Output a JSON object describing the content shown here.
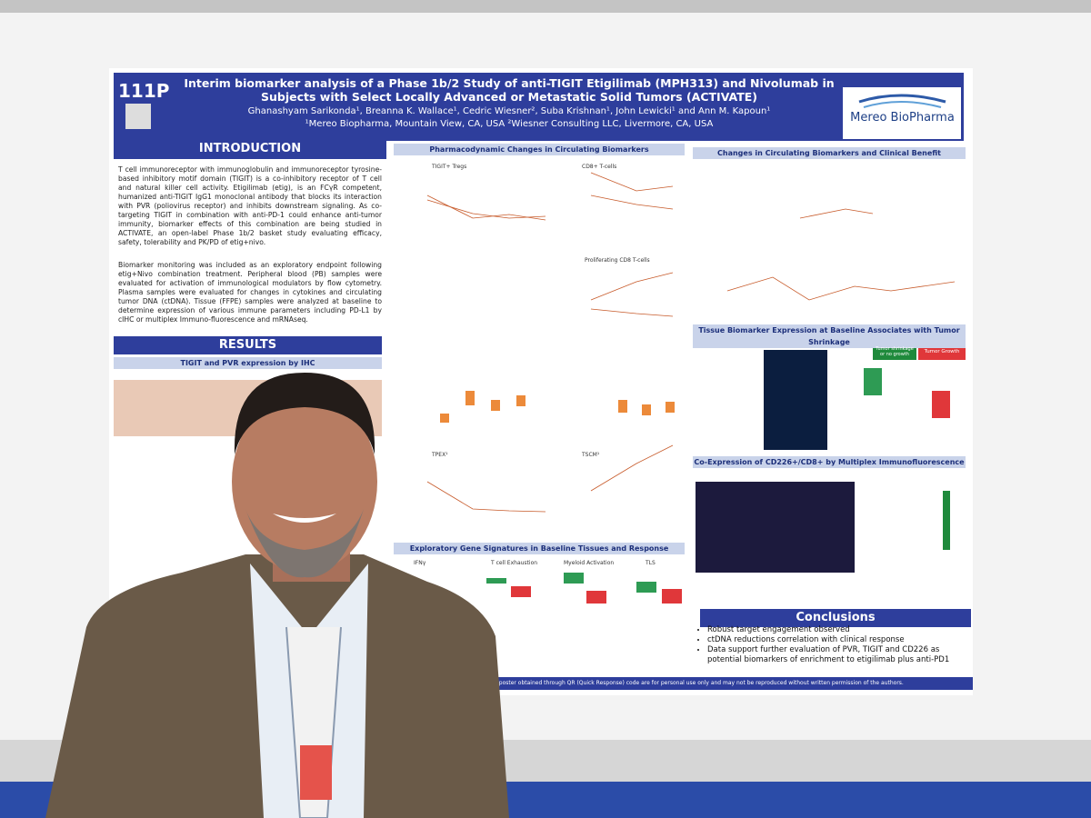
{
  "header": {
    "badge": "111P",
    "title": "Interim biomarker analysis of a Phase 1b/2 Study of anti-TIGIT Etigilimab (MPH313) and Nivolumab in Subjects with Select Locally Advanced or Metastatic Solid Tumors (ACTIVATE)",
    "authors": "Ghanashyam Sarikonda¹, Breanna K. Wallace¹, Cedric Wiesner², Suba Krishnan¹, John Lewicki¹ and Ann M. Kapoun¹",
    "affiliations": "¹Mereo Biopharma, Mountain View, CA, USA ²Wiesner Consulting LLC, Livermore, CA, USA",
    "logo": "Mereo BioPharma"
  },
  "introduction": {
    "heading": "INTRODUCTION",
    "paragraphs": [
      "T cell immunoreceptor with immunoglobulin and immunoreceptor tyrosine-based inhibitory motif domain (TIGIT) is a co-inhibitory receptor of T cell and natural killer cell activity. Etigilimab (etig), is an FCγR competent, humanized anti-TIGIT IgG1 monoclonal antibody that blocks its interaction with PVR (poliovirus receptor) and inhibits downstream signaling. As co-targeting TIGIT in combination with anti-PD-1 could enhance anti-tumor immunity, biomarker effects of this combination are being studied in ACTIVATE, an open-label Phase 1b/2 basket study evaluating efficacy, safety, tolerability and PK/PD of etig+nivo.",
      "Biomarker monitoring was included as an exploratory endpoint following etig+Nivo combination treatment. Peripheral blood (PB) samples were evaluated for activation of immunological modulators by flow cytometry. Plasma samples were evaluated for changes in cytokines and circulating tumor DNA (ctDNA). Tissue (FFPE) samples were analyzed at baseline to determine expression of various immune parameters including PD-L1 by cIHC or multiplex Immuno-fluorescence and mRNAseq."
    ]
  },
  "results": {
    "heading": "RESULTS",
    "subheading": "TIGIT and PVR expression by IHC"
  },
  "middle": {
    "heading": "Pharmacodynamic Changes in Circulating Biomarkers",
    "panels": [
      "TIGIT+ Tregs",
      "CD8+ T-cells",
      "Proliferating CD8 T-cells",
      "TPEX¹",
      "TSCM¹"
    ],
    "gene_heading": "Exploratory Gene Signatures in Baseline Tissues and Response",
    "gene_panels": [
      "IFNγ",
      "T cell Exhaustion",
      "Myeloid Activation",
      "TLS"
    ]
  },
  "right": {
    "heading1": "Changes in Circulating Biomarkers and Clinical Benefit",
    "heading2": "Tissue Biomarker Expression at Baseline Associates with Tumor Shrinkage",
    "heading3": "Co-Expression of CD226+/CD8+ by Multiplex Immunofluorescence",
    "legend": [
      "Tumor shrinkage or no growth",
      "Tumor Growth"
    ]
  },
  "conclusions": {
    "heading": "Conclusions",
    "bullets": [
      "Robust target engagement observed",
      "ctDNA reductions correlation with clinical response",
      "Data support further evaluation of PVR, TIGIT and CD226 as potential biomarkers of enrichment to etigilimab plus anti-PD1"
    ]
  },
  "footer": "Copies of this poster obtained through QR (Quick Response) code are for personal use only and may not be reproduced without written permission of the authors."
}
